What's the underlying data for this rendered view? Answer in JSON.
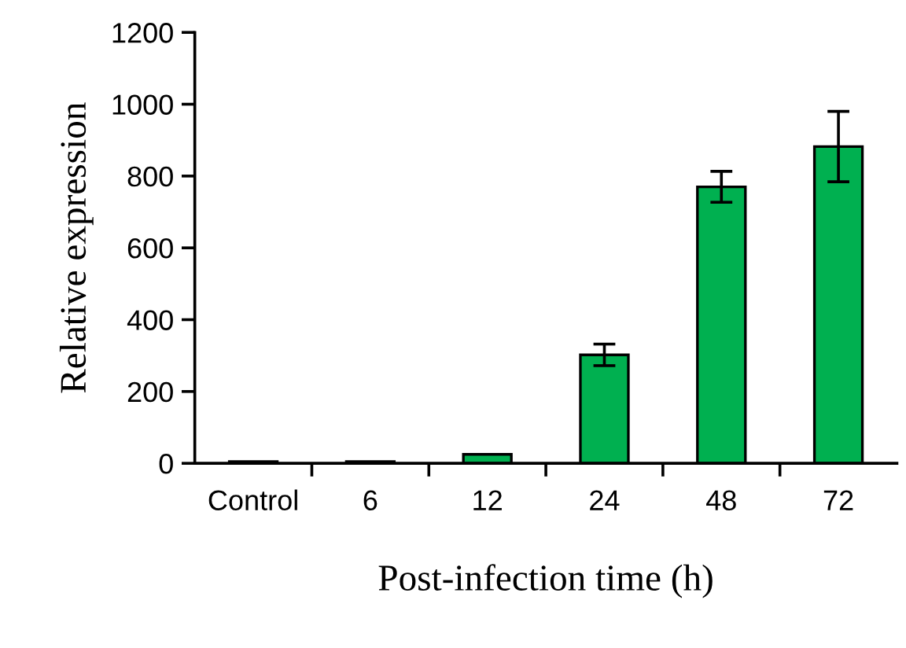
{
  "chart_data": {
    "type": "bar",
    "xlabel": "Post-infection time (h)",
    "ylabel": "Relative expression",
    "categories": [
      "Control",
      "6",
      "12",
      "24",
      "48",
      "72"
    ],
    "values": [
      5,
      5,
      25,
      302,
      770,
      882
    ],
    "errors": [
      null,
      null,
      null,
      30,
      43,
      98
    ],
    "color": "#00b050",
    "ylim": [
      0,
      1200
    ],
    "yticks": [
      0,
      200,
      400,
      600,
      800,
      1000,
      1200
    ],
    "grid": false,
    "legend": false
  }
}
